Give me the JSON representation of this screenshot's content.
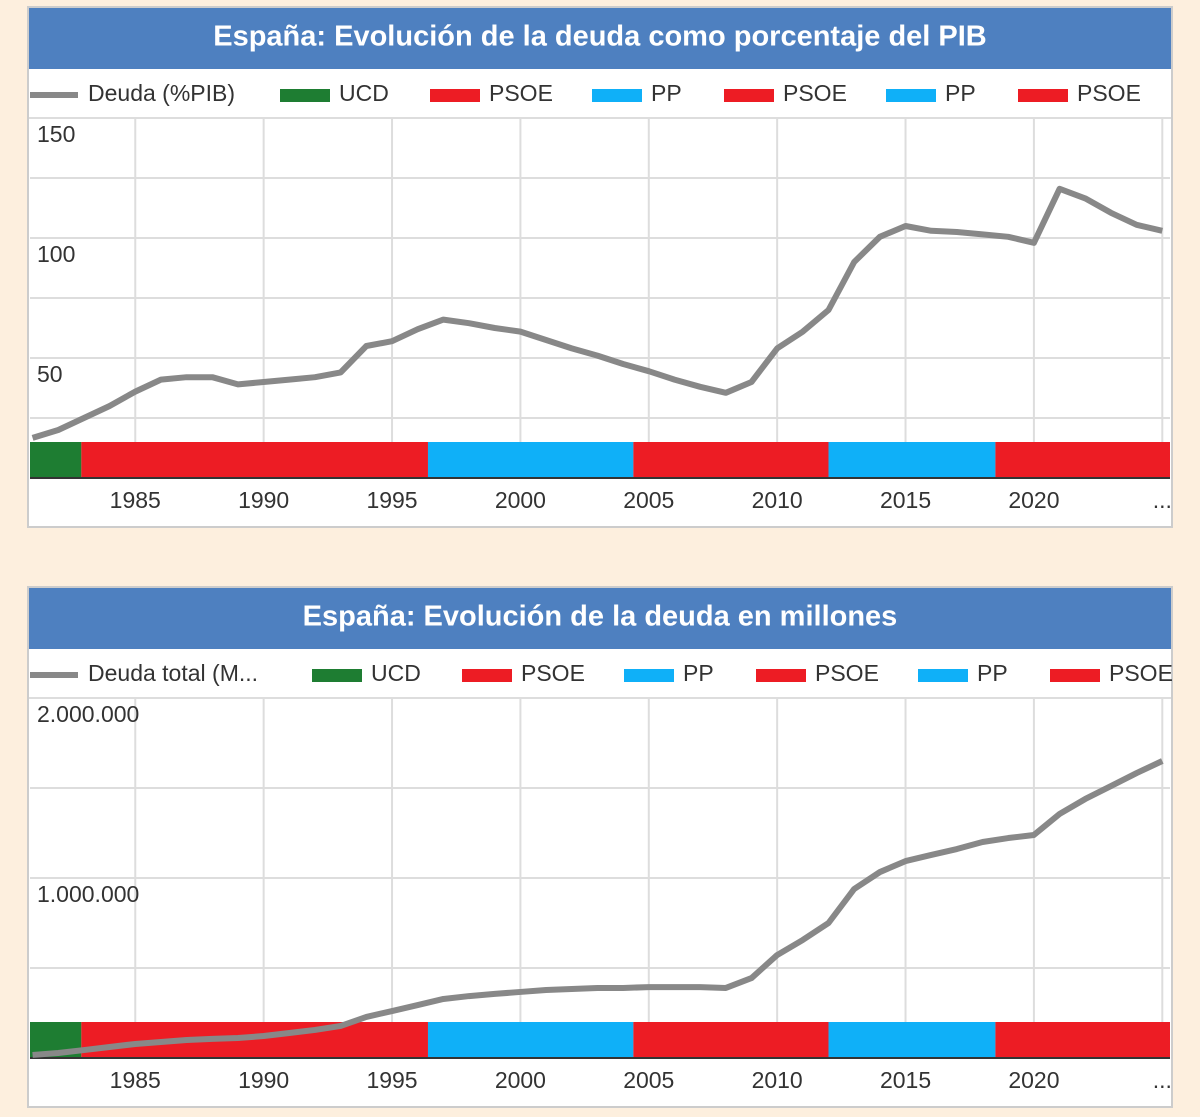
{
  "chart_data": [
    {
      "type": "line",
      "title": "España: Evolución de la deuda como porcentaje del PIB",
      "x": [
        1981,
        1982,
        1983,
        1984,
        1985,
        1986,
        1987,
        1988,
        1989,
        1990,
        1991,
        1992,
        1993,
        1994,
        1995,
        1996,
        1997,
        1998,
        1999,
        2000,
        2001,
        2002,
        2003,
        2004,
        2005,
        2006,
        2007,
        2008,
        2009,
        2010,
        2011,
        2012,
        2013,
        2014,
        2015,
        2016,
        2017,
        2018,
        2019,
        2020,
        2021,
        2022,
        2023,
        2024,
        2025
      ],
      "series": [
        {
          "name": "Deuda (%PIB)",
          "color": "#888888",
          "values": [
            16.7,
            20,
            25,
            30,
            36,
            41,
            42,
            42,
            39,
            40,
            41,
            42,
            44,
            55,
            57,
            62,
            66,
            64.5,
            62.5,
            61,
            57.5,
            54,
            51,
            47.5,
            44.5,
            41,
            38,
            35.5,
            40,
            54,
            61,
            70,
            90,
            100.5,
            105,
            103,
            102.5,
            101.5,
            100.5,
            98,
            120.5,
            116.5,
            110.5,
            105.5,
            103
          ]
        }
      ],
      "governments": [
        {
          "name": "UCD",
          "color": "#1e7d32",
          "start": 1980.9,
          "end": 1982.9
        },
        {
          "name": "PSOE",
          "color": "#ed1c24",
          "start": 1982.9,
          "end": 1996.4
        },
        {
          "name": "PP",
          "color": "#0fb0f8",
          "start": 1996.4,
          "end": 2004.4
        },
        {
          "name": "PSOE",
          "color": "#ed1c24",
          "start": 2004.4,
          "end": 2012.0
        },
        {
          "name": "PP",
          "color": "#0fb0f8",
          "start": 2012.0,
          "end": 2018.5
        },
        {
          "name": "PSOE",
          "color": "#ed1c24",
          "start": 2018.5,
          "end": 2025.3
        }
      ],
      "xlim": [
        1980.9,
        2025.3
      ],
      "xticks": [
        1985,
        1990,
        1995,
        2000,
        2005,
        2010,
        2015,
        2020,
        {
          "value": 2025,
          "label": "..."
        }
      ],
      "ylim": [
        0,
        150
      ],
      "yticks": [
        50,
        100,
        150
      ],
      "minor_yticks": [
        25,
        75,
        125
      ],
      "grid": true
    },
    {
      "type": "line",
      "title": "España: Evolución de la deuda en millones",
      "x": [
        1981,
        1982,
        1983,
        1984,
        1985,
        1986,
        1987,
        1988,
        1989,
        1990,
        1991,
        1992,
        1993,
        1994,
        1995,
        1996,
        1997,
        1998,
        1999,
        2000,
        2001,
        2002,
        2003,
        2004,
        2005,
        2006,
        2007,
        2008,
        2009,
        2010,
        2011,
        2012,
        2013,
        2014,
        2015,
        2016,
        2017,
        2018,
        2019,
        2020,
        2021,
        2022,
        2023,
        2024,
        2025
      ],
      "series": [
        {
          "name": "Deuda total (M...",
          "color": "#888888",
          "values": [
            17000,
            28000,
            44000,
            61000,
            78000,
            89000,
            100000,
            106000,
            111000,
            122000,
            139000,
            156000,
            178000,
            228000,
            261000,
            294000,
            328000,
            344000,
            356000,
            367000,
            378000,
            383000,
            389000,
            389000,
            394000,
            394000,
            394000,
            389000,
            444000,
            572000,
            656000,
            750000,
            939000,
            1033000,
            1094000,
            1128000,
            1161000,
            1200000,
            1222000,
            1239000,
            1356000,
            1439000,
            1511000,
            1583000,
            1650000
          ]
        }
      ],
      "governments": [
        {
          "name": "UCD",
          "color": "#1e7d32",
          "start": 1980.9,
          "end": 1982.9
        },
        {
          "name": "PSOE",
          "color": "#ed1c24",
          "start": 1982.9,
          "end": 1996.4
        },
        {
          "name": "PP",
          "color": "#0fb0f8",
          "start": 1996.4,
          "end": 2004.4
        },
        {
          "name": "PSOE",
          "color": "#ed1c24",
          "start": 2004.4,
          "end": 2012.0
        },
        {
          "name": "PP",
          "color": "#0fb0f8",
          "start": 2012.0,
          "end": 2018.5
        },
        {
          "name": "PSOE",
          "color": "#ed1c24",
          "start": 2018.5,
          "end": 2025.3
        }
      ],
      "xlim": [
        1980.9,
        2025.3
      ],
      "xticks": [
        1985,
        1990,
        1995,
        2000,
        2005,
        2010,
        2015,
        2020,
        {
          "value": 2025,
          "label": "..."
        }
      ],
      "ylim": [
        0,
        2000000
      ],
      "yticks": [
        {
          "value": 1000000,
          "label": "1.000.000"
        },
        {
          "value": 2000000,
          "label": "2.000.000"
        }
      ],
      "minor_yticks": [
        500000,
        1500000
      ],
      "grid": true
    }
  ]
}
